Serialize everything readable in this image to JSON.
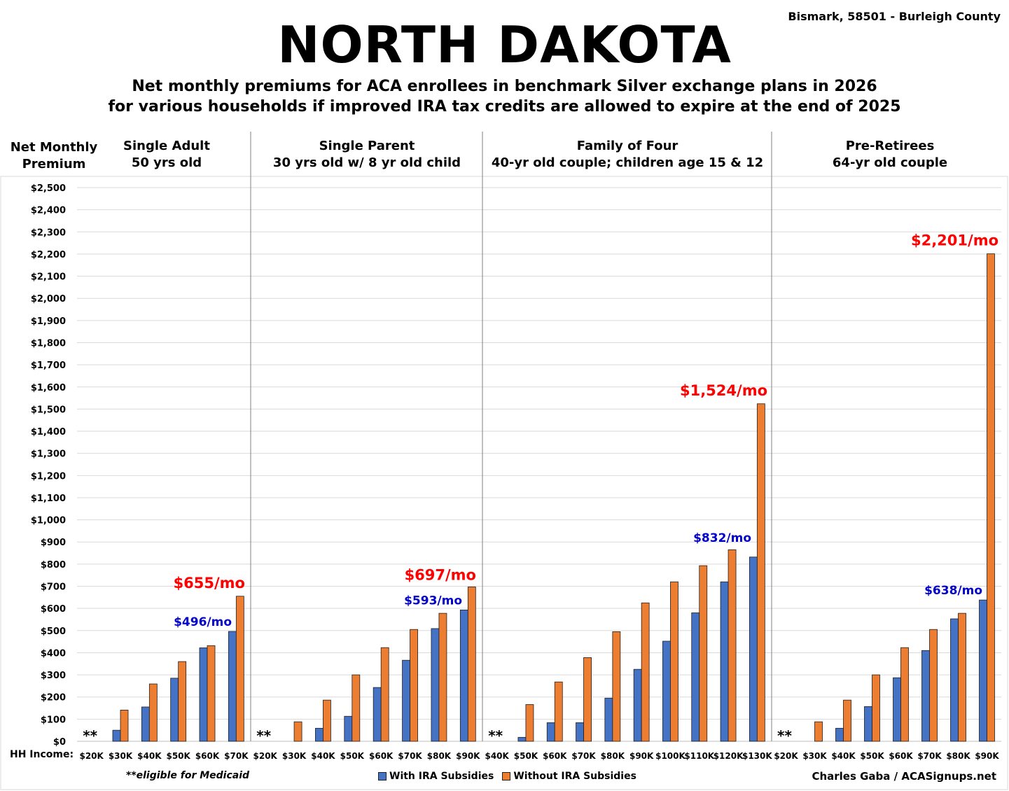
{
  "header": {
    "location": "Bismark, 58501 - Burleigh County",
    "title": "NORTH DAKOTA",
    "subtitle_line1": "Net monthly premiums for ACA enrollees in benchmark Silver exchange plans in 2026",
    "subtitle_line2": "for various households if improved IRA tax credits are allowed to expire at the end of 2025"
  },
  "y_axis_title": {
    "line1": "Net Monthly",
    "line2": "Premium"
  },
  "hh_income_label": "HH Income:",
  "footnote": "**eligible for Medicaid",
  "credit": "Charles Gaba / ACASignups.net",
  "colors": {
    "with": "#4472C4",
    "without": "#ED7D31",
    "callout_red": "#FF0000",
    "callout_blue": "#0000CC"
  },
  "chart_data": {
    "type": "bar",
    "ylabel": "Net Monthly Premium",
    "ylim": [
      0,
      2500
    ],
    "y_ticks": [
      "$0",
      "$100",
      "$200",
      "$300",
      "$400",
      "$500",
      "$600",
      "$700",
      "$800",
      "$900",
      "$1,000",
      "$1,100",
      "$1,200",
      "$1,300",
      "$1,400",
      "$1,500",
      "$1,600",
      "$1,700",
      "$1,800",
      "$1,900",
      "$2,000",
      "$2,100",
      "$2,200",
      "$2,300",
      "$2,400",
      "$2,500"
    ],
    "grid": true,
    "legend": {
      "placement": "bottom-center",
      "entries": [
        "With IRA Subsidies",
        "Without IRA Subsidies"
      ]
    },
    "panels": [
      {
        "title_line1": "Single Adult",
        "title_line2": "50 yrs old",
        "categories": [
          "$20K",
          "$30K",
          "$40K",
          "$50K",
          "$60K",
          "$70K"
        ],
        "series": [
          {
            "name": "With IRA Subsidies",
            "values": [
              0,
              50,
              155,
              285,
              422,
              496
            ]
          },
          {
            "name": "Without IRA Subsidies",
            "values": [
              0,
              141,
              259,
              360,
              432,
              655
            ]
          }
        ],
        "medicaid_mark": "**",
        "callouts": {
          "with": "$496/mo",
          "without": "$655/mo"
        }
      },
      {
        "title_line1": "Single Parent",
        "title_line2": "30 yrs old w/ 8 yr old child",
        "categories": [
          "$20K",
          "$30K",
          "$40K",
          "$50K",
          "$60K",
          "$70K",
          "$80K",
          "$90K"
        ],
        "series": [
          {
            "name": "With IRA Subsidies",
            "values": [
              0,
              0,
              59,
              113,
              243,
              366,
              509,
              593
            ]
          },
          {
            "name": "Without IRA Subsidies",
            "values": [
              0,
              88,
              186,
              300,
              423,
              505,
              578,
              697
            ]
          }
        ],
        "medicaid_mark": "**",
        "callouts": {
          "with": "$593/mo",
          "without": "$697/mo"
        }
      },
      {
        "title_line1": "Family of Four",
        "title_line2": "40-yr old couple; children age 15 & 12",
        "categories": [
          "$40K",
          "$50K",
          "$60K",
          "$70K",
          "$80K",
          "$90K",
          "$100K",
          "$110K",
          "$120K",
          "$130K"
        ],
        "series": [
          {
            "name": "With IRA Subsidies",
            "values": [
              0,
              18,
              84,
              84,
              195,
              325,
              452,
              580,
              720,
              832
            ]
          },
          {
            "name": "Without IRA Subsidies",
            "values": [
              0,
              166,
              268,
              378,
              495,
              625,
              720,
              793,
              865,
              1524
            ]
          }
        ],
        "medicaid_mark": "**",
        "callouts": {
          "with": "$832/mo",
          "without": "$1,524/mo"
        }
      },
      {
        "title_line1": "Pre-Retirees",
        "title_line2": "64-yr old couple",
        "categories": [
          "$20K",
          "$30K",
          "$40K",
          "$50K",
          "$60K",
          "$70K",
          "$80K",
          "$90K"
        ],
        "series": [
          {
            "name": "With IRA Subsidies",
            "values": [
              0,
              0,
              59,
              157,
              287,
              410,
              553,
              638
            ]
          },
          {
            "name": "Without IRA Subsidies",
            "values": [
              0,
              88,
              186,
              300,
              423,
              505,
              578,
              2201
            ]
          }
        ],
        "medicaid_mark": "**",
        "callouts": {
          "with": "$638/mo",
          "without": "$2,201/mo"
        }
      }
    ]
  }
}
